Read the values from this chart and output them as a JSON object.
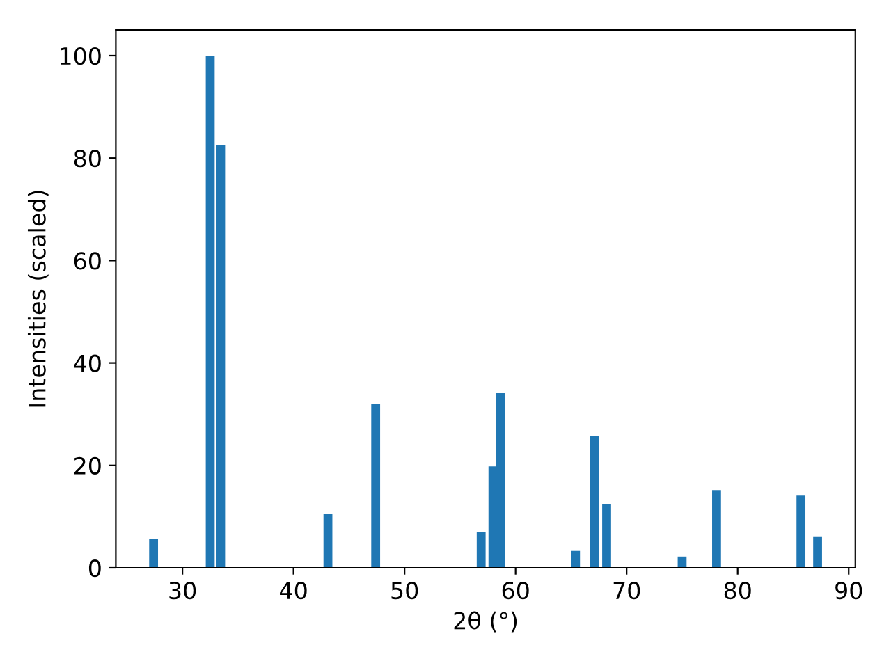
{
  "chart_data": {
    "type": "bar",
    "xlabel": "2θ (°)",
    "ylabel": "Intensities (scaled)",
    "x": [
      27.4,
      32.5,
      33.44,
      43.1,
      47.4,
      56.9,
      57.96,
      58.65,
      65.4,
      67.1,
      68.2,
      75.0,
      78.1,
      85.7,
      87.2
    ],
    "values": [
      5.7,
      100,
      82.6,
      10.6,
      32.0,
      7.0,
      19.8,
      34.1,
      3.3,
      25.7,
      12.5,
      2.2,
      15.2,
      14.1,
      6.0
    ],
    "color": "#1f77b4",
    "xlim": [
      24.0,
      90.6
    ],
    "ylim": [
      0,
      105
    ],
    "xticks": [
      30,
      40,
      50,
      60,
      70,
      80,
      90
    ],
    "yticks": [
      0,
      20,
      40,
      60,
      80,
      100
    ],
    "grid": false
  }
}
